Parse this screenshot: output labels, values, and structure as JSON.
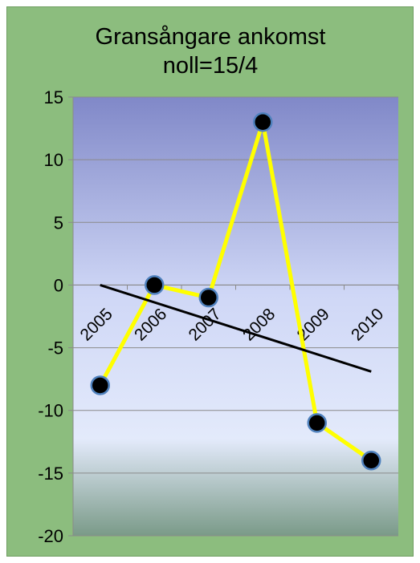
{
  "chart_data": {
    "type": "line",
    "title_lines": [
      "Gransångare ankomst",
      "noll=15/4"
    ],
    "categories": [
      "2005",
      "2006",
      "2007",
      "2008",
      "2009",
      "2010"
    ],
    "series": [
      {
        "values": [
          -8,
          0,
          -1,
          13,
          -11,
          -14
        ],
        "color": "#ffff00",
        "marker_color": "#000000",
        "marker_edge": "#4f81bd"
      },
      {
        "values": [
          0,
          -1.35,
          -2.7,
          -4.05,
          -5.4,
          -6.9
        ],
        "color": "#000000",
        "kind": "trendline"
      }
    ],
    "yticks": [
      15,
      10,
      5,
      0,
      -5,
      -10,
      -15,
      -20
    ],
    "ylim": [
      -20,
      15
    ],
    "grid": true,
    "legend": "none",
    "plot_gradient": [
      "#8088c8",
      "#cfd7f6",
      "#e3eafb",
      "#7a9a88"
    ]
  }
}
